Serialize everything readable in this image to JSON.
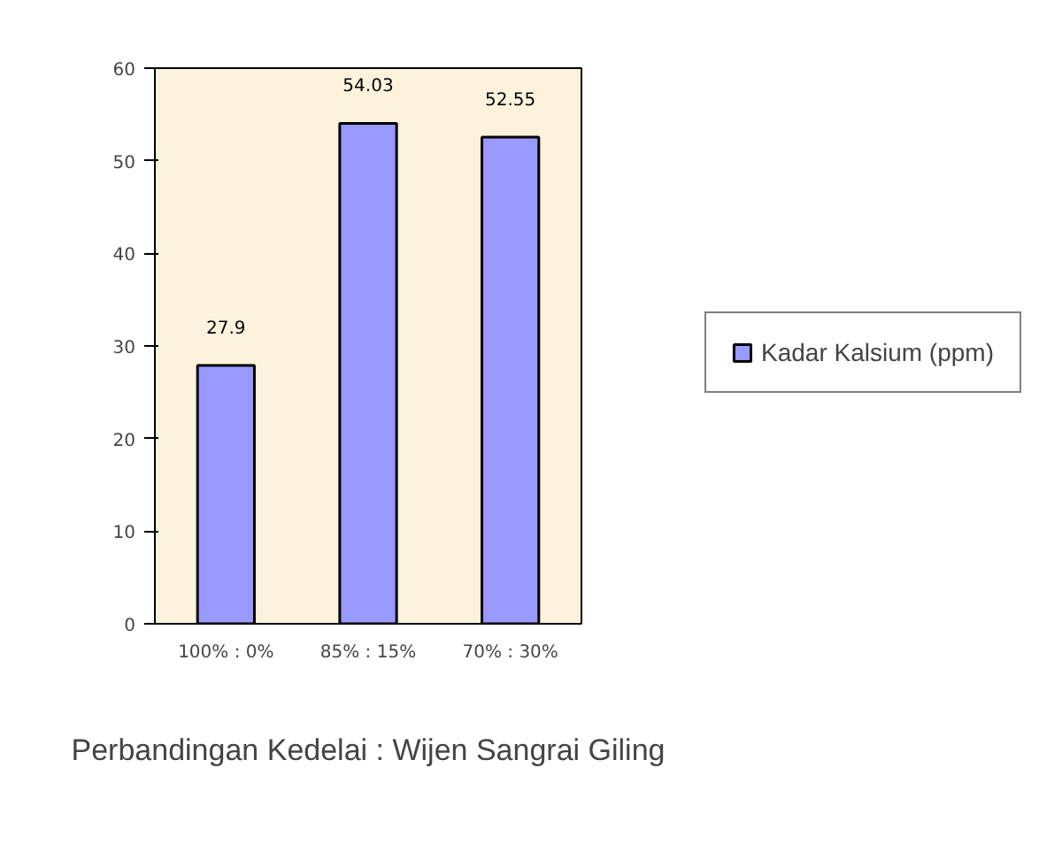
{
  "chart_data": {
    "type": "bar",
    "annotations": [
      "Perbandingan Kedelai : Wijen Sangrai Giling"
    ],
    "categories": [
      "100% : 0%",
      "85% : 15%",
      "70% : 30%"
    ],
    "series": [
      {
        "name": "Kadar Kalsium (ppm)",
        "color": "#9999ff",
        "values": [
          27.9,
          54.03,
          52.55
        ]
      }
    ],
    "ylim": [
      0,
      60
    ],
    "yticks": [
      0,
      10,
      20,
      30,
      40,
      50,
      60
    ],
    "legend": "right",
    "data_labels": true
  }
}
